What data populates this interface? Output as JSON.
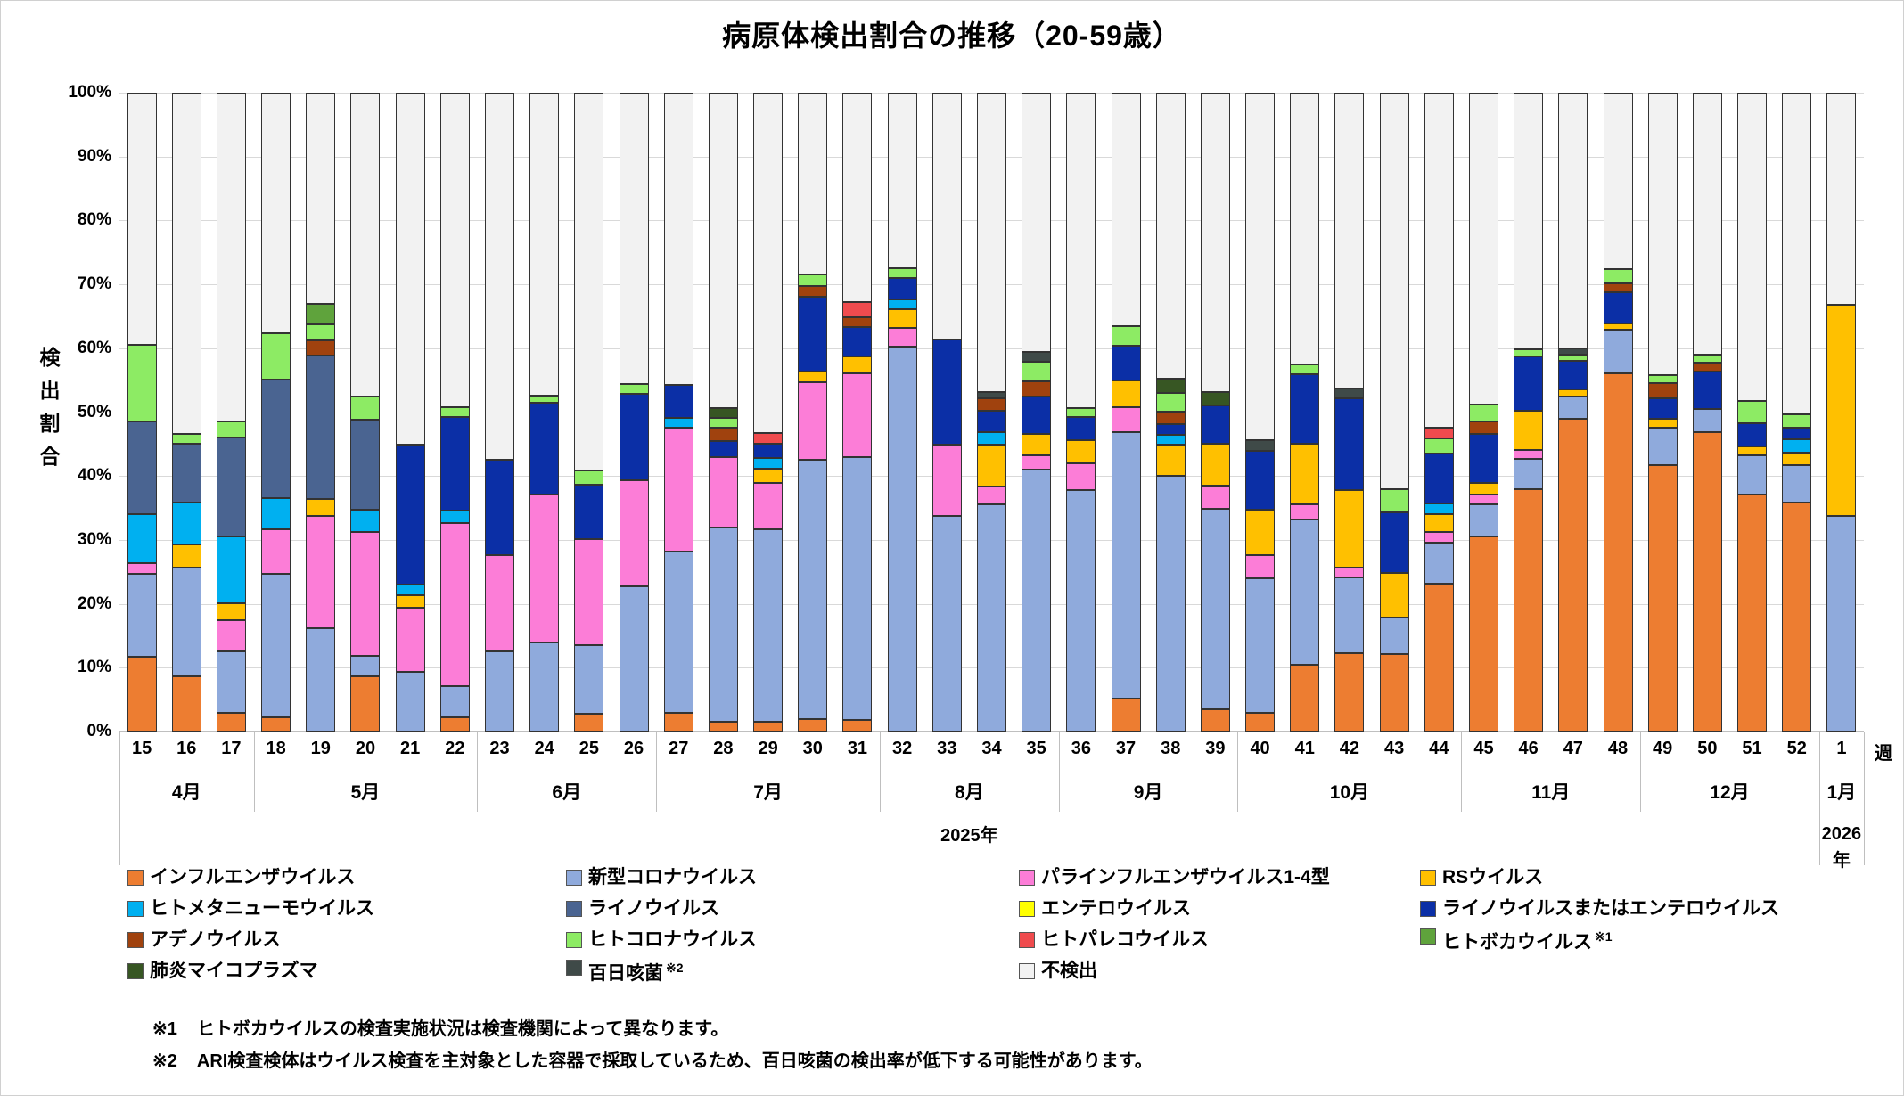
{
  "title": "病原体検出割合の推移（20-59歳）",
  "y_axis": {
    "title": "検出割合",
    "ticks": [
      "0%",
      "10%",
      "20%",
      "30%",
      "40%",
      "50%",
      "60%",
      "70%",
      "80%",
      "90%",
      "100%"
    ]
  },
  "x_axis": {
    "week_unit_label": "週",
    "year_2025": "2025年",
    "year_2026_lines": [
      "2026",
      "年"
    ]
  },
  "chart_data": {
    "type": "bar",
    "stacked": true,
    "unit": "%",
    "ylim": [
      0,
      100
    ],
    "grid": true,
    "series_order": [
      "flu",
      "cov",
      "par",
      "rs",
      "mpv",
      "rhi",
      "ent",
      "roe",
      "ade",
      "hcv",
      "hpe",
      "boc",
      "myc",
      "per"
    ],
    "series_meta": {
      "flu": {
        "label": "インフルエンザウイルス",
        "color": "#ED7D31"
      },
      "cov": {
        "label": "新型コロナウイルス",
        "color": "#8FAADC"
      },
      "par": {
        "label": "パラインフルエンザウイルス1-4型",
        "color": "#FC7DD7"
      },
      "rs": {
        "label": "RSウイルス",
        "color": "#FFC000"
      },
      "mpv": {
        "label": "ヒトメタニューモウイルス",
        "color": "#00B0F0"
      },
      "rhi": {
        "label": "ライノウイルス",
        "color": "#4A6491"
      },
      "ent": {
        "label": "エンテロウイルス",
        "color": "#FFFF00"
      },
      "roe": {
        "label": "ライノウイルスまたはエンテロウイルス",
        "color": "#0B2FA6"
      },
      "ade": {
        "label": "アデノウイルス",
        "color": "#A0420E"
      },
      "hcv": {
        "label": "ヒトコロナウイルス",
        "color": "#8DEB64"
      },
      "hpe": {
        "label": "ヒトパレコウイルス",
        "color": "#EF4B4E"
      },
      "boc": {
        "label": "ヒトボカウイルス",
        "color": "#5FA33C",
        "sup": "※1"
      },
      "myc": {
        "label": "肺炎マイコプラズマ",
        "color": "#375623"
      },
      "per": {
        "label": "百日咳菌",
        "color": "#3F4A48",
        "sup": "※2"
      },
      "nd": {
        "label": "不検出",
        "color": "#F2F2F2"
      }
    },
    "months": [
      {
        "label": "4月",
        "weeks": [
          "15",
          "16",
          "17"
        ]
      },
      {
        "label": "5月",
        "weeks": [
          "18",
          "19",
          "20",
          "21",
          "22"
        ]
      },
      {
        "label": "6月",
        "weeks": [
          "23",
          "24",
          "25",
          "26"
        ]
      },
      {
        "label": "7月",
        "weeks": [
          "27",
          "28",
          "29",
          "30",
          "31"
        ]
      },
      {
        "label": "8月",
        "weeks": [
          "32",
          "33",
          "34",
          "35"
        ]
      },
      {
        "label": "9月",
        "weeks": [
          "36",
          "37",
          "38",
          "39"
        ]
      },
      {
        "label": "10月",
        "weeks": [
          "40",
          "41",
          "42",
          "43",
          "44"
        ]
      },
      {
        "label": "11月",
        "weeks": [
          "45",
          "46",
          "47",
          "48"
        ]
      },
      {
        "label": "12月",
        "weeks": [
          "49",
          "50",
          "51",
          "52"
        ]
      },
      {
        "label": "1月",
        "weeks": [
          "1"
        ]
      }
    ],
    "bars": [
      {
        "week": "15",
        "values": {
          "flu": 11.7,
          "cov": 13.0,
          "par": 1.7,
          "mpv": 7.6,
          "rhi": 14.5,
          "hcv": 12.0
        }
      },
      {
        "week": "16",
        "values": {
          "flu": 8.7,
          "cov": 17.0,
          "rs": 3.6,
          "mpv": 6.5,
          "rhi": 9.3,
          "hcv": 1.5
        }
      },
      {
        "week": "17",
        "values": {
          "flu": 2.9,
          "cov": 9.6,
          "par": 5.0,
          "rs": 2.6,
          "mpv": 10.4,
          "rhi": 15.5,
          "hcv": 2.5
        }
      },
      {
        "week": "18",
        "values": {
          "flu": 2.2,
          "cov": 22.5,
          "par": 6.9,
          "mpv": 4.9,
          "rhi": 18.6,
          "hcv": 7.2
        }
      },
      {
        "week": "19",
        "values": {
          "cov": 16.2,
          "par": 17.6,
          "rs": 2.6,
          "rhi": 22.5,
          "ade": 2.3,
          "hcv": 2.6,
          "boc": 3.1
        }
      },
      {
        "week": "20",
        "values": {
          "flu": 8.6,
          "cov": 3.3,
          "par": 19.3,
          "mpv": 3.6,
          "rhi": 14.0,
          "hcv": 3.7
        }
      },
      {
        "week": "21",
        "values": {
          "cov": 9.3,
          "par": 10.1,
          "rs": 2.0,
          "mpv": 1.6,
          "roe": 21.9
        }
      },
      {
        "week": "22",
        "values": {
          "flu": 2.2,
          "cov": 4.9,
          "par": 25.5,
          "mpv": 2.0,
          "roe": 14.7,
          "hcv": 1.5
        }
      },
      {
        "week": "23",
        "values": {
          "cov": 12.6,
          "par": 15.0,
          "roe": 15.0
        }
      },
      {
        "week": "24",
        "values": {
          "cov": 13.9,
          "par": 23.2,
          "roe": 14.4,
          "hcv": 1.1
        }
      },
      {
        "week": "25",
        "values": {
          "flu": 2.8,
          "cov": 10.8,
          "par": 16.5,
          "roe": 8.5,
          "hcv": 2.3
        }
      },
      {
        "week": "26",
        "values": {
          "cov": 22.7,
          "par": 16.7,
          "roe": 13.4,
          "hcv": 1.6
        }
      },
      {
        "week": "27",
        "values": {
          "flu": 2.9,
          "cov": 25.3,
          "par": 19.3,
          "mpv": 1.6,
          "roe": 5.2
        }
      },
      {
        "week": "28",
        "values": {
          "flu": 1.5,
          "cov": 30.4,
          "par": 11.0,
          "roe": 2.6,
          "ade": 2.0,
          "hcv": 1.6,
          "myc": 1.6
        }
      },
      {
        "week": "29",
        "values": {
          "flu": 1.5,
          "cov": 30.2,
          "par": 7.2,
          "rs": 2.3,
          "mpv": 1.6,
          "roe": 2.3,
          "hpe": 1.6
        }
      },
      {
        "week": "30",
        "values": {
          "flu": 2.0,
          "cov": 40.6,
          "par": 12.1,
          "rs": 1.6,
          "roe": 11.8,
          "ade": 1.6,
          "hcv": 1.8
        }
      },
      {
        "week": "31",
        "values": {
          "flu": 1.8,
          "cov": 41.2,
          "par": 13.1,
          "rs": 2.6,
          "roe": 4.6,
          "ade": 1.6,
          "hpe": 2.3
        }
      },
      {
        "week": "32",
        "values": {
          "cov": 60.3,
          "par": 2.9,
          "rs": 2.9,
          "mpv": 1.6,
          "roe": 3.3,
          "hcv": 1.6
        }
      },
      {
        "week": "33",
        "values": {
          "cov": 33.8,
          "par": 11.1,
          "roe": 16.5
        }
      },
      {
        "week": "34",
        "values": {
          "cov": 35.5,
          "par": 2.9,
          "rs": 6.5,
          "mpv": 2.0,
          "roe": 3.3,
          "ade": 2.0,
          "per": 1.0
        }
      },
      {
        "week": "35",
        "values": {
          "cov": 41.0,
          "par": 2.3,
          "rs": 3.3,
          "roe": 5.9,
          "ade": 2.3,
          "hcv": 3.1,
          "per": 1.5
        }
      },
      {
        "week": "36",
        "values": {
          "cov": 37.8,
          "par": 4.2,
          "rs": 3.6,
          "roe": 3.6,
          "hcv": 1.4
        }
      },
      {
        "week": "37",
        "values": {
          "flu": 5.1,
          "cov": 41.8,
          "par": 3.9,
          "rs": 4.2,
          "roe": 5.4,
          "hcv": 3.0
        }
      },
      {
        "week": "38",
        "values": {
          "cov": 40.0,
          "rs": 4.9,
          "mpv": 1.6,
          "roe": 1.6,
          "ade": 2.0,
          "hcv": 2.9,
          "myc": 2.3
        }
      },
      {
        "week": "39",
        "values": {
          "flu": 3.5,
          "cov": 31.4,
          "par": 3.6,
          "rs": 6.5,
          "roe": 6.1,
          "myc": 2.1
        }
      },
      {
        "week": "40",
        "values": {
          "flu": 2.9,
          "cov": 21.1,
          "par": 3.6,
          "rs": 7.2,
          "roe": 9.2,
          "per": 1.6
        }
      },
      {
        "week": "41",
        "values": {
          "flu": 10.5,
          "cov": 22.7,
          "par": 2.3,
          "rs": 9.5,
          "roe": 10.9,
          "hcv": 1.5
        }
      },
      {
        "week": "42",
        "values": {
          "flu": 12.3,
          "cov": 11.8,
          "par": 1.6,
          "rs": 12.1,
          "roe": 14.4,
          "per": 1.5
        }
      },
      {
        "week": "43",
        "values": {
          "flu": 12.1,
          "cov": 5.8,
          "rs": 6.9,
          "roe": 9.5,
          "hcv": 3.6
        }
      },
      {
        "week": "44",
        "values": {
          "flu": 23.1,
          "cov": 6.5,
          "par": 1.6,
          "rs": 2.9,
          "mpv": 1.6,
          "roe": 7.8,
          "hcv": 2.4,
          "hpe": 1.7
        }
      },
      {
        "week": "45",
        "values": {
          "flu": 30.6,
          "cov": 4.9,
          "par": 1.6,
          "rs": 1.8,
          "roe": 7.7,
          "ade": 2.0,
          "hcv": 2.6
        }
      },
      {
        "week": "46",
        "values": {
          "flu": 37.9,
          "cov": 4.8,
          "par": 1.4,
          "rs": 6.1,
          "roe": 8.5,
          "hcv": 1.1
        }
      },
      {
        "week": "47",
        "values": {
          "flu": 48.9,
          "cov": 3.6,
          "rs": 1.0,
          "roe": 4.5,
          "hcv": 1.0,
          "per": 1.0
        }
      },
      {
        "week": "48",
        "values": {
          "flu": 56.0,
          "cov": 6.9,
          "rs": 1.0,
          "roe": 4.9,
          "ade": 1.3,
          "hcv": 2.3
        }
      },
      {
        "week": "49",
        "values": {
          "flu": 41.7,
          "cov": 5.9,
          "rs": 1.3,
          "roe": 3.3,
          "ade": 2.3,
          "hcv": 1.3
        }
      },
      {
        "week": "50",
        "values": {
          "flu": 46.9,
          "cov": 3.6,
          "roe": 5.9,
          "ade": 1.3,
          "hcv": 1.3
        }
      },
      {
        "week": "51",
        "values": {
          "flu": 37.1,
          "cov": 6.2,
          "rs": 1.4,
          "roe": 3.5,
          "hcv": 3.6
        }
      },
      {
        "week": "52",
        "values": {
          "flu": 35.8,
          "cov": 5.9,
          "rs": 2.0,
          "mpv": 2.0,
          "roe": 1.8,
          "hcv": 2.2
        }
      },
      {
        "week": "1",
        "values": {
          "cov": 33.8,
          "rs": 33.0
        }
      }
    ]
  },
  "legend_order": [
    "flu",
    "cov",
    "par",
    "rs",
    "mpv",
    "rhi",
    "ent",
    "roe",
    "ade",
    "hcv",
    "hpe",
    "boc",
    "myc",
    "per",
    "nd"
  ],
  "footnotes": [
    {
      "marker": "※1",
      "text": "ヒトボカウイルスの検査実施状況は検査機関によって異なります。"
    },
    {
      "marker": "※2",
      "text": "ARI検査検体はウイルス検査を主対象とした容器で採取しているため、百日咳菌の検出率が低下する可能性があります。"
    }
  ]
}
